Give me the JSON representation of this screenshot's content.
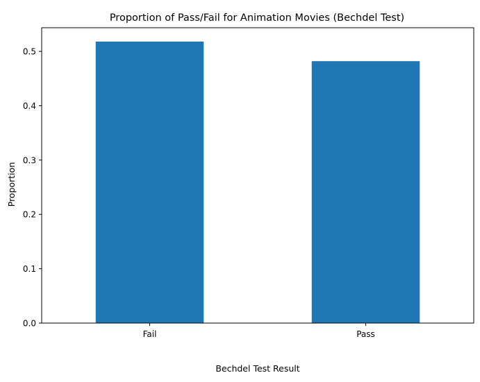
{
  "chart_data": {
    "type": "bar",
    "title": "Proportion of Pass/Fail for Animation Movies (Bechdel Test)",
    "xlabel": "Bechdel Test Result",
    "ylabel": "Proportion",
    "categories": [
      "Fail",
      "Pass"
    ],
    "values": [
      0.518,
      0.482
    ],
    "ylim": [
      0,
      0.5435
    ],
    "yticks": [
      "0.0",
      "0.1",
      "0.2",
      "0.3",
      "0.4",
      "0.5"
    ],
    "bar_color": "#1f77b4",
    "grid": false,
    "legend": "none"
  }
}
